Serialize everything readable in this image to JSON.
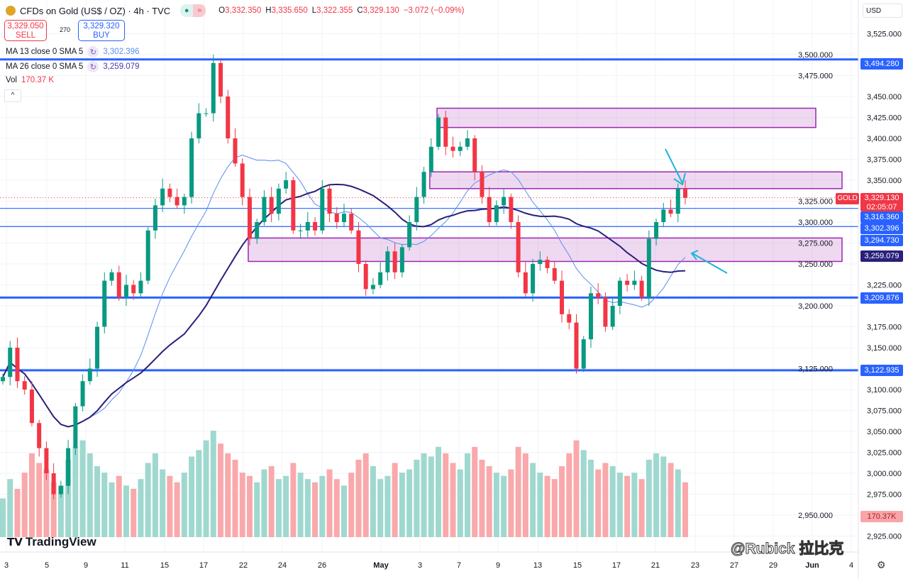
{
  "header": {
    "symbol": "CFDs on Gold (US$ / OZ) · 4h · TVC",
    "open": "3,332.350",
    "high": "3,335.650",
    "low": "3,322.355",
    "close": "3,329.130",
    "change": "−3.072 (−0.09%)",
    "o_label": "O",
    "h_label": "H",
    "l_label": "L",
    "c_label": "C"
  },
  "trade": {
    "sell_price": "3,329.050",
    "sell_label": "SELL",
    "spread": "270",
    "buy_price": "3,329.320",
    "buy_label": "BUY"
  },
  "indicators": [
    {
      "label": "MA 13 close 0 SMA 5",
      "value": "3,302.396",
      "color": "#5b8def"
    },
    {
      "label": "MA 26 close 0 SMA 5",
      "value": "3,259.079",
      "color": "#2a1f7a"
    }
  ],
  "volume": {
    "label": "Vol",
    "value": "170.37 K",
    "axis_tag": "170.37K"
  },
  "currency": "USD",
  "price_tags": {
    "symbol": "GOLD",
    "last": "3,329.130",
    "countdown": "02:05:07",
    "ma13": "3,302.396",
    "ma26": "3,259.079"
  },
  "logo_text": "TradingView",
  "watermark": "@Rubick 拉比克",
  "colors": {
    "up": "#089981",
    "down": "#f23645",
    "line": "#2962ff",
    "zone": "#9c27b0"
  },
  "chart_data": {
    "type": "candlestick",
    "title": "CFDs on Gold (US$ / OZ) · 4h · TVC",
    "ylim": [
      2915,
      3540
    ],
    "y_ticks": [
      "3,525.000",
      "3,500.000",
      "3,475.000",
      "3,450.000",
      "3,425.000",
      "3,400.000",
      "3,375.000",
      "3,350.000",
      "3,325.000",
      "3,300.000",
      "3,275.000",
      "3,250.000",
      "3,225.000",
      "3,200.000",
      "3,175.000",
      "3,150.000",
      "3,125.000",
      "3,100.000",
      "3,075.000",
      "3,050.000",
      "3,025.000",
      "3,000.000",
      "2,975.000",
      "2,950.000",
      "2,925.000"
    ],
    "x_ticks": [
      "3",
      "5",
      "9",
      "11",
      "15",
      "17",
      "22",
      "24",
      "26",
      "May",
      "3",
      "7",
      "9",
      "13",
      "15",
      "17",
      "21",
      "23",
      "27",
      "29",
      "Jun",
      "4"
    ],
    "closes": [
      3115,
      3150,
      3110,
      3100,
      3060,
      3030,
      3000,
      2975,
      2985,
      3030,
      3080,
      3110,
      3125,
      3175,
      3230,
      3240,
      3210,
      3225,
      3215,
      3230,
      3290,
      3320,
      3340,
      3330,
      3320,
      3330,
      3400,
      3430,
      3430,
      3490,
      3450,
      3400,
      3370,
      3330,
      3280,
      3300,
      3330,
      3310,
      3340,
      3350,
      3290,
      3290,
      3300,
      3290,
      3340,
      3310,
      3300,
      3310,
      3290,
      3250,
      3220,
      3225,
      3240,
      3265,
      3240,
      3270,
      3300,
      3330,
      3360,
      3390,
      3425,
      3390,
      3385,
      3390,
      3400,
      3360,
      3330,
      3300,
      3320,
      3330,
      3300,
      3240,
      3215,
      3250,
      3255,
      3245,
      3230,
      3190,
      3180,
      3125,
      3160,
      3215,
      3210,
      3175,
      3200,
      3230,
      3225,
      3230,
      3210,
      3280,
      3300,
      3315,
      3310,
      3340,
      3329
    ],
    "volumes_k": [
      120,
      180,
      150,
      200,
      260,
      230,
      210,
      170,
      160,
      240,
      280,
      300,
      260,
      220,
      200,
      170,
      190,
      160,
      150,
      180,
      230,
      260,
      210,
      190,
      170,
      200,
      250,
      270,
      300,
      330,
      290,
      260,
      240,
      200,
      190,
      170,
      210,
      220,
      180,
      190,
      230,
      200,
      180,
      170,
      190,
      210,
      180,
      160,
      200,
      240,
      260,
      220,
      180,
      190,
      230,
      200,
      210,
      240,
      260,
      250,
      280,
      260,
      230,
      210,
      260,
      280,
      240,
      220,
      200,
      190,
      210,
      280,
      260,
      230,
      200,
      190,
      180,
      220,
      260,
      300,
      270,
      240,
      210,
      230,
      220,
      200,
      190,
      200,
      180,
      240,
      260,
      250,
      230,
      210,
      170
    ],
    "horizontal_levels": [
      {
        "price": 3494.28,
        "label": "3,494.280",
        "style": "thick"
      },
      {
        "price": 3316.36,
        "label": "3,316.360",
        "style": "thin"
      },
      {
        "price": 3294.73,
        "label": "3,294.730",
        "style": "thin"
      },
      {
        "price": 3209.876,
        "label": "3,209.876",
        "style": "thick"
      },
      {
        "price": 3122.935,
        "label": "3,122.935",
        "style": "thick"
      }
    ],
    "zones": [
      {
        "from": 3413,
        "to": 3436,
        "start_index": 60
      },
      {
        "from": 3340,
        "to": 3360,
        "start_index": 59
      },
      {
        "from": 3253,
        "to": 3281,
        "start_index": 34
      }
    ],
    "series": [
      {
        "name": "MA 13",
        "period": 13
      },
      {
        "name": "MA 26",
        "period": 26
      }
    ]
  }
}
